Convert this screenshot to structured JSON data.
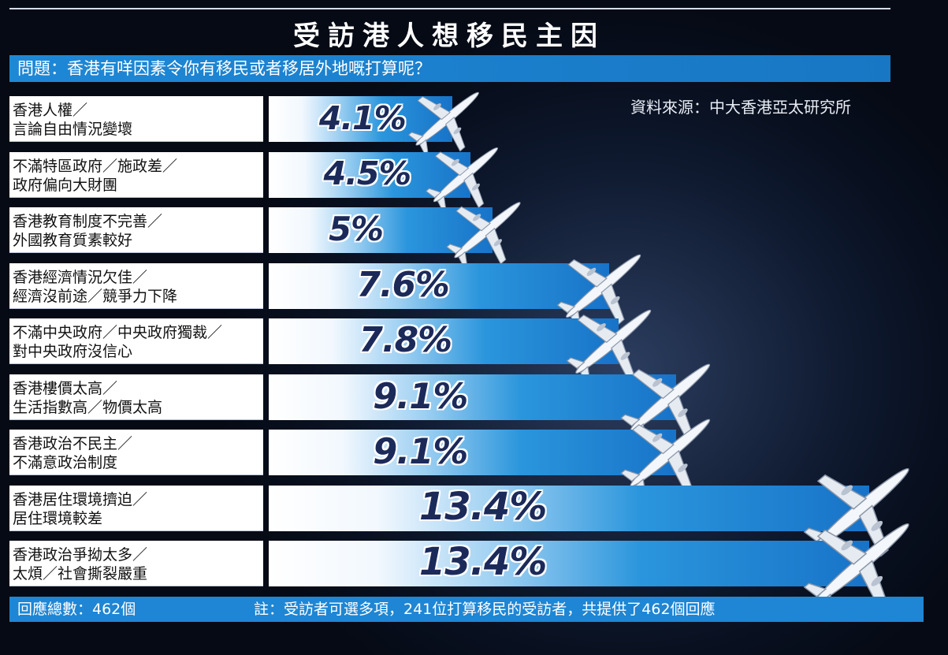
{
  "title": "受訪港人想移民主因",
  "question": "問題：香港有咩因素令你有移民或者移居外地嘅打算呢？",
  "source": "資料來源：中大香港亞太研究所",
  "footer": {
    "total": "回應總數：462個",
    "note": "註：受訪者可選多項，241位打算移民的受訪者，共提供了462個回應"
  },
  "colors": {
    "background": "#0a1426",
    "bar_blue": "#1873c8",
    "header_blue": "#1e88d6",
    "value_text": "#1c2a5a"
  },
  "icons": [
    "airplane-icon"
  ],
  "chart_data": {
    "type": "bar",
    "orientation": "horizontal",
    "unit": "%",
    "categories": [
      [
        "香港人權／",
        "言論自由情況變壞"
      ],
      [
        "不滿特區政府／施政差／",
        "政府偏向大財團"
      ],
      [
        "香港教育制度不完善／",
        "外國教育質素較好"
      ],
      [
        "香港經濟情況欠佳／",
        "經濟沒前途／競爭力下降"
      ],
      [
        "不滿中央政府／中央政府獨裁／",
        "對中央政府沒信心"
      ],
      [
        "香港樓價太高／",
        "生活指數高／物價太高"
      ],
      [
        "香港政治不民主／",
        "不滿意政治制度"
      ],
      [
        "香港居住環境擠迫／",
        "居住環境較差"
      ],
      [
        "香港政治爭拗太多／",
        "太煩／社會撕裂嚴重"
      ]
    ],
    "values": [
      4.1,
      4.5,
      5,
      7.6,
      7.8,
      9.1,
      9.1,
      13.4,
      13.4
    ],
    "value_labels": [
      "4.1%",
      "4.5%",
      "5%",
      "7.6%",
      "7.8%",
      "9.1%",
      "9.1%",
      "13.4%",
      "13.4%"
    ],
    "grid": false,
    "legend": "none"
  }
}
